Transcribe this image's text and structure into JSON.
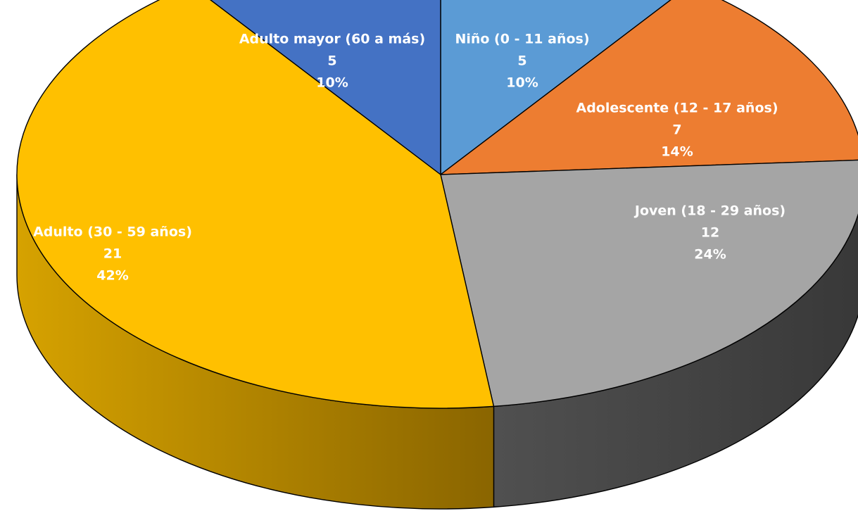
{
  "chart_data": {
    "type": "pie",
    "style": "3d",
    "title": "",
    "legend": "none",
    "slices": [
      {
        "label": "Niño (0 - 11 años)",
        "value": 5,
        "percent": "10%",
        "color": "#5B9BD5",
        "side_color": "#3E6F9E"
      },
      {
        "label": "Adolescente (12 - 17 años)",
        "value": 7,
        "percent": "14%",
        "color": "#ED7D31",
        "side_color": "#A8561F"
      },
      {
        "label": "Joven (18 - 29 años)",
        "value": 12,
        "percent": "24%",
        "color": "#A5A5A5",
        "side_color": "#404040"
      },
      {
        "label": "Adulto (30 - 59 años)",
        "value": 21,
        "percent": "42%",
        "color": "#FFC000",
        "side_color": "#A87C00"
      },
      {
        "label": "Adulto mayor (60 a más)",
        "value": 5,
        "percent": "10%",
        "color": "#4472C4",
        "side_color": "#2E4E86"
      }
    ]
  }
}
